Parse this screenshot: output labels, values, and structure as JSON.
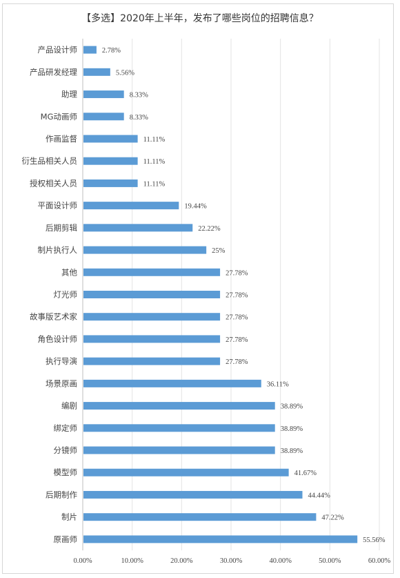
{
  "chart_data": {
    "type": "bar",
    "orientation": "horizontal",
    "title": "【多选】2020年上半年，发布了哪些岗位的招聘信息？",
    "categories": [
      "产品设计师",
      "产品研发经理",
      "助理",
      "MG动画师",
      "作画监督",
      "衍生品相关人员",
      "授权相关人员",
      "平面设计师",
      "后期剪辑",
      "制片执行人",
      "其他",
      "灯光师",
      "故事版艺术家",
      "角色设计师",
      "执行导演",
      "场景原画",
      "编剧",
      "绑定师",
      "分镜师",
      "模型师",
      "后期制作",
      "制片",
      "原画师"
    ],
    "values": [
      2.78,
      5.56,
      8.33,
      8.33,
      11.11,
      11.11,
      11.11,
      19.44,
      22.22,
      25,
      27.78,
      27.78,
      27.78,
      27.78,
      27.78,
      36.11,
      38.89,
      38.89,
      38.89,
      41.67,
      44.44,
      47.22,
      55.56
    ],
    "value_labels": [
      "2.78%",
      "5.56%",
      "8.33%",
      "8.33%",
      "11.11%",
      "11.11%",
      "11.11%",
      "19.44%",
      "22.22%",
      "25%",
      "27.78%",
      "27.78%",
      "27.78%",
      "27.78%",
      "27.78%",
      "36.11%",
      "38.89%",
      "38.89%",
      "38.89%",
      "41.67%",
      "44.44%",
      "47.22%",
      "55.56%"
    ],
    "xlim": [
      0,
      60
    ],
    "x_ticks": [
      "0.00%",
      "10.00%",
      "20.00%",
      "30.00%",
      "40.00%",
      "50.00%",
      "60.00%"
    ],
    "grid": true,
    "bar_color": "#5b9bd5"
  }
}
